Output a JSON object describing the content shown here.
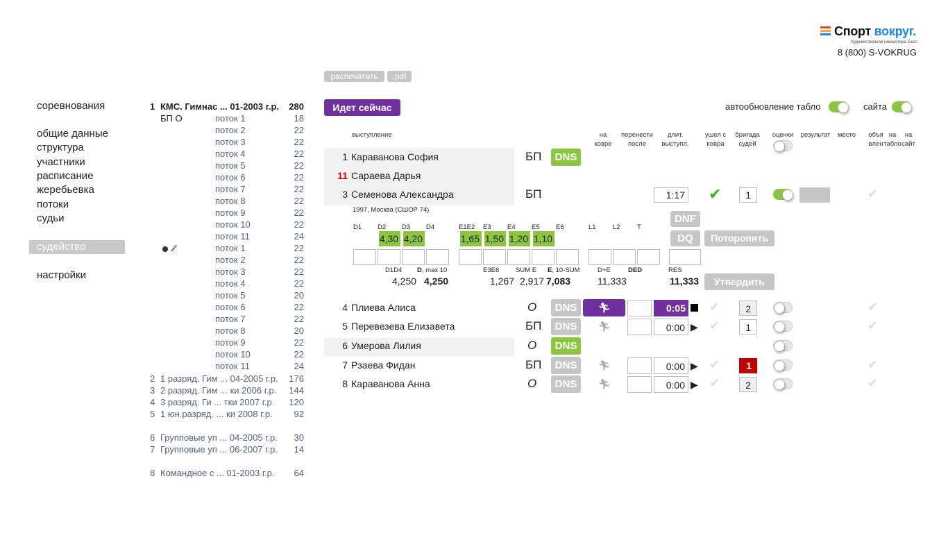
{
  "brand": {
    "name1": "Спорт",
    "name2": "вокруг.",
    "subtitle": "Художественная гимнастика. Босс",
    "phone": "8 (800) S-VOKRUG",
    "stripe_colors": [
      "#e8452c",
      "#f5a623",
      "#1e88e5"
    ]
  },
  "colors": {
    "accent": "#7030a0",
    "green": "#8cc63f",
    "red": "#c00000",
    "gray": "#c6c6c6"
  },
  "nav": {
    "items": [
      "соревнования",
      "общие данные",
      "структура",
      "участники",
      "расписание",
      "жеребьевка",
      "потоки",
      "судьи",
      "судейство",
      "настройки"
    ],
    "selected": "судейство"
  },
  "toolbar": {
    "print": "распечатать",
    "pdf": ".pdf"
  },
  "streams": {
    "header": {
      "num": "1",
      "title": "КМС. Гимнас ... 01-2003 г.р.",
      "count": "280"
    },
    "group1": {
      "label": "БП О",
      "items": [
        [
          "поток 1",
          "18"
        ],
        [
          "поток 2",
          "22"
        ],
        [
          "поток 3",
          "22"
        ],
        [
          "поток 4",
          "22"
        ],
        [
          "поток 5",
          "22"
        ],
        [
          "поток 6",
          "22"
        ],
        [
          "поток 7",
          "22"
        ],
        [
          "поток 8",
          "22"
        ],
        [
          "поток 9",
          "22"
        ],
        [
          "поток 10",
          "22"
        ],
        [
          "поток 11",
          "24"
        ]
      ]
    },
    "group2": {
      "icons": "ball-clubs",
      "items": [
        [
          "поток 1",
          "22"
        ],
        [
          "поток 2",
          "22"
        ],
        [
          "поток 3",
          "22"
        ],
        [
          "поток 4",
          "22"
        ],
        [
          "поток 5",
          "20"
        ],
        [
          "поток 6",
          "22"
        ],
        [
          "поток 7",
          "22"
        ],
        [
          "поток 8",
          "20"
        ],
        [
          "поток 9",
          "22"
        ],
        [
          "поток 10",
          "22"
        ],
        [
          "поток 11",
          "24"
        ]
      ]
    },
    "categories": [
      [
        "2",
        "1 разряд. Гим ... 04-2005 г.р.",
        "176"
      ],
      [
        "3",
        "2 разряд. Гим ... ки 2006 г.р.",
        "144"
      ],
      [
        "4",
        "3 разряд. Ги ... тки 2007 г.р.",
        "120"
      ],
      [
        "5",
        "1 юн.разряд. ... ки 2008 г.р.",
        "92"
      ],
      [
        "6",
        "Групповые уп ... 04-2005 г.р.",
        "30"
      ],
      [
        "7",
        "Групповые уп ... 06-2007 г.р.",
        "14"
      ],
      [
        "8",
        "Командное с ... 01-2003 г.р.",
        "64"
      ]
    ]
  },
  "main": {
    "now_label": "Идет сейчас",
    "auto_label": "автообновление табло",
    "auto_on": true,
    "site_label": "сайта",
    "site_on": true,
    "headers": {
      "perf": "выступление",
      "carpet": [
        "на",
        "ковре"
      ],
      "move": [
        "перенести",
        "после"
      ],
      "dur": [
        "длит.",
        "выступл."
      ],
      "left": [
        "ушел с",
        "ковра"
      ],
      "brigade": [
        "бригада",
        "судей"
      ],
      "scores": "оценки",
      "result": "результат",
      "place": "место",
      "announced": [
        "объя",
        "влен"
      ],
      "board": [
        "на",
        "табло"
      ],
      "site": [
        "на",
        "сайт"
      ]
    },
    "top_rows": [
      {
        "num": "1",
        "name": "Караванова София",
        "app": "БП",
        "dns": "DNS"
      },
      {
        "num": "11",
        "name": "Сараева Дарья",
        "num_color": "#e00000"
      },
      {
        "num": "3",
        "name": "Семенова Александра",
        "app": "БП",
        "duration": "1:17",
        "brigade": "1",
        "scores_on": true
      }
    ],
    "detail": {
      "info": "1997, Москва (СШОР 74)",
      "labels": [
        "D1",
        "D2",
        "D3",
        "D4",
        "E1E2",
        "E3",
        "E4",
        "E5",
        "E6",
        "L1",
        "L2",
        "T"
      ],
      "scores": {
        "D2": "4,30",
        "D3": "4,20",
        "E1E2": "1,65",
        "E3": "1,50",
        "E4": "1,20",
        "E5": "1,10"
      },
      "sum_labels": {
        "d1d4": "D1D4",
        "dmax_b": "D",
        "dmax": ", max 10",
        "e3e6": "E3E6",
        "sume": "SUM E",
        "e10_b": "E",
        "e10": ", 10-SUM",
        "de": "D+E",
        "ded": "DED",
        "res": "RES"
      },
      "sums": {
        "d1d4": "4,250",
        "d": "4,250",
        "e3e6": "1,267",
        "sume": "2,917",
        "e": "7,083",
        "de": "11,333",
        "res": "11,333"
      },
      "buttons": {
        "dnf": "DNF",
        "dq": "DQ",
        "hurry": "Поторопить",
        "confirm": "Утвердить"
      }
    },
    "rows": [
      {
        "num": "4",
        "name": "Плиева Алиса",
        "app": "О",
        "dns": "DNS",
        "duration": "0:05",
        "active": true,
        "brigade": "2",
        "brigade_style": "gray"
      },
      {
        "num": "5",
        "name": "Перевезева Елизавета",
        "app": "БП",
        "dns": "DNS",
        "duration": "0:00",
        "brigade": "1",
        "brigade_style": "white"
      },
      {
        "num": "6",
        "name": "Умерова Лилия",
        "app": "О",
        "dns": "DNS",
        "dns_green": true
      },
      {
        "num": "7",
        "name": "Рзаева Фидан",
        "app": "БП",
        "dns": "DNS",
        "duration": "0:00",
        "brigade": "1",
        "brigade_style": "red"
      },
      {
        "num": "8",
        "name": "Караванова Анна",
        "app": "О",
        "dns": "DNS",
        "duration": "0:00",
        "brigade": "2",
        "brigade_style": "gray"
      }
    ]
  }
}
